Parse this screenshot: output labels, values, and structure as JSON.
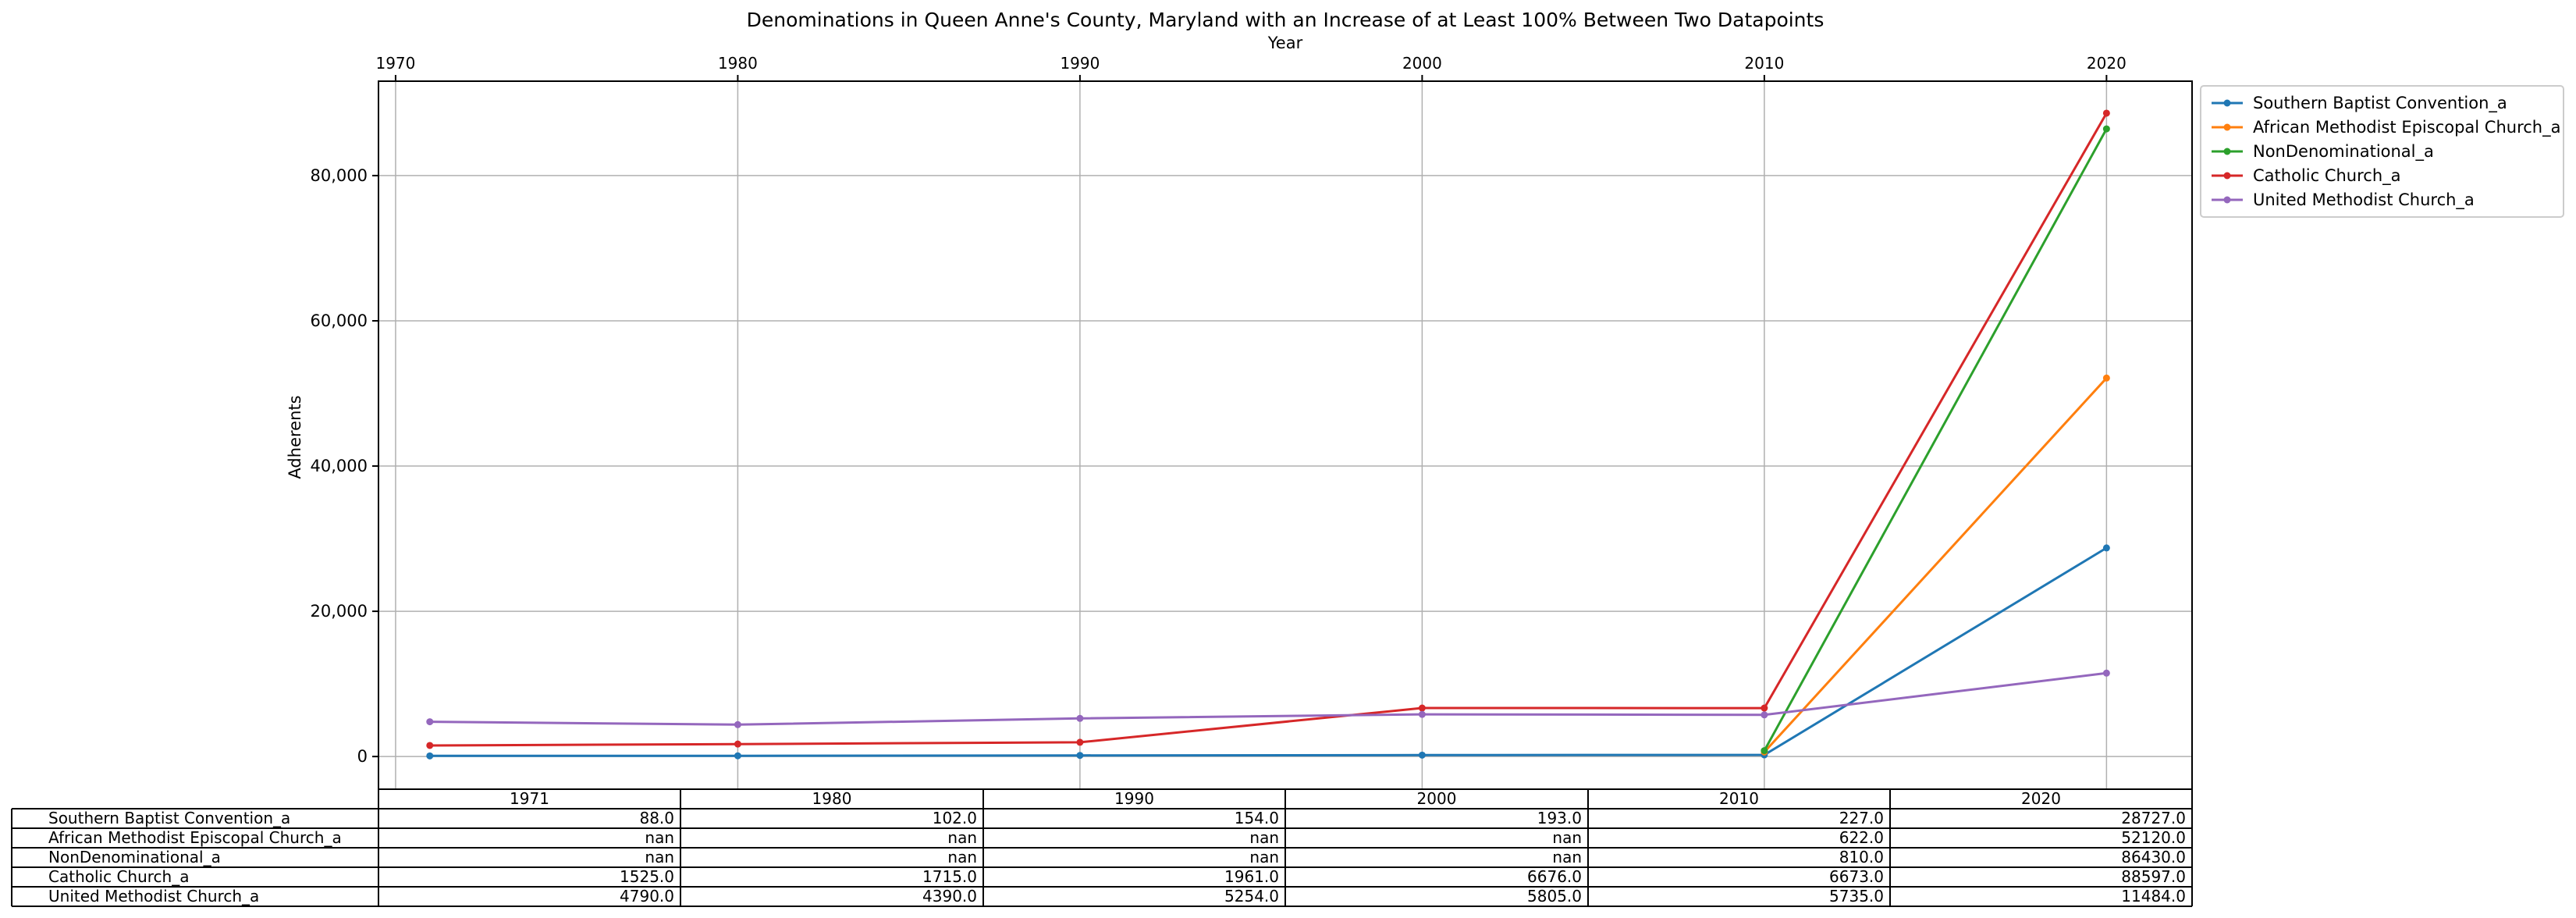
{
  "chart_data": {
    "type": "line",
    "title": "Denominations in Queen Anne's County, Maryland with an Increase of at Least 100% Between Two Datapoints",
    "xlabel": "Year",
    "ylabel": "Adherents",
    "x_ticks": [
      "1970",
      "1980",
      "1990",
      "2000",
      "2010",
      "2020"
    ],
    "y_ticks": [
      "0",
      "20,000",
      "40,000",
      "60,000",
      "80,000"
    ],
    "y_tick_values": [
      0,
      20000,
      40000,
      60000,
      80000
    ],
    "xlim": [
      1969.5,
      2022.5
    ],
    "ylim": [
      -4500,
      93000
    ],
    "grid": true,
    "legend_position": "outside-top-right",
    "x": [
      1971,
      1980,
      1990,
      2000,
      2010,
      2020
    ],
    "series": [
      {
        "name": "Southern Baptist Convention_a",
        "color": "#1f77b4",
        "values": [
          88.0,
          102.0,
          154.0,
          193.0,
          227.0,
          28727.0
        ]
      },
      {
        "name": "African Methodist Episcopal Church_a",
        "color": "#ff7f0e",
        "values": [
          null,
          null,
          null,
          null,
          622.0,
          52120.0
        ]
      },
      {
        "name": "NonDenominational_a",
        "color": "#2ca02c",
        "values": [
          null,
          null,
          null,
          null,
          810.0,
          86430.0
        ]
      },
      {
        "name": "Catholic Church_a",
        "color": "#d62728",
        "values": [
          1525.0,
          1715.0,
          1961.0,
          6676.0,
          6673.0,
          88597.0
        ]
      },
      {
        "name": "United Methodist Church_a",
        "color": "#9467bd",
        "values": [
          4790.0,
          4390.0,
          5254.0,
          5805.0,
          5735.0,
          11484.0
        ]
      }
    ],
    "table": {
      "columns": [
        "1971",
        "1980",
        "1990",
        "2000",
        "2010",
        "2020"
      ],
      "rows": [
        {
          "label": "Southern Baptist Convention_a",
          "cells": [
            "88.0",
            "102.0",
            "154.0",
            "193.0",
            "227.0",
            "28727.0"
          ]
        },
        {
          "label": "African Methodist Episcopal Church_a",
          "cells": [
            "nan",
            "nan",
            "nan",
            "nan",
            "622.0",
            "52120.0"
          ]
        },
        {
          "label": "NonDenominational_a",
          "cells": [
            "nan",
            "nan",
            "nan",
            "nan",
            "810.0",
            "86430.0"
          ]
        },
        {
          "label": "Catholic Church_a",
          "cells": [
            "1525.0",
            "1715.0",
            "1961.0",
            "6676.0",
            "6673.0",
            "88597.0"
          ]
        },
        {
          "label": "United Methodist Church_a",
          "cells": [
            "4790.0",
            "4390.0",
            "5254.0",
            "5805.0",
            "5735.0",
            "11484.0"
          ]
        }
      ]
    }
  }
}
